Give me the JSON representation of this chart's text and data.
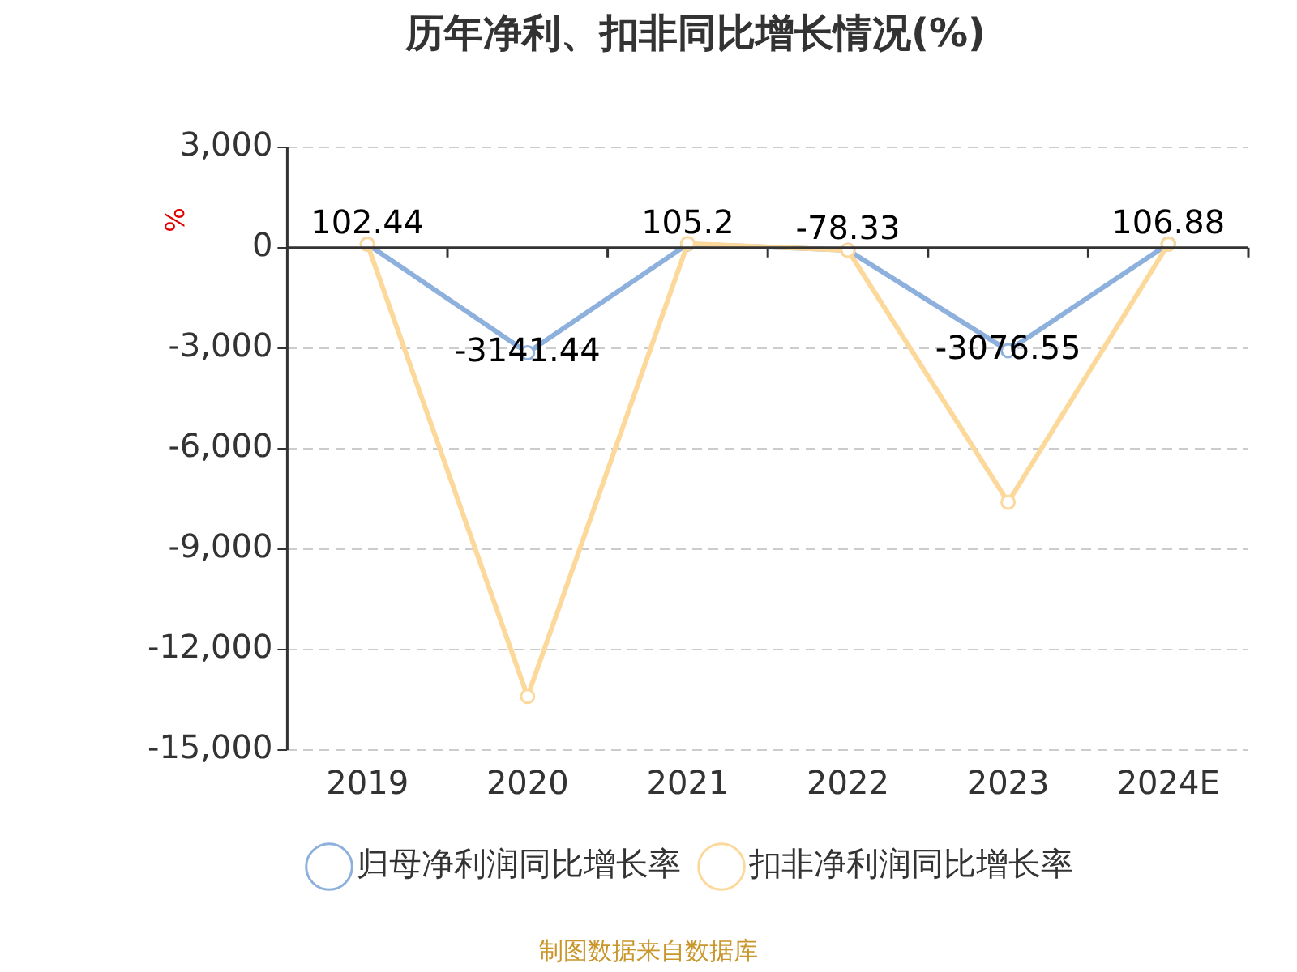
{
  "chart_data": {
    "type": "line",
    "title": "历年净利、扣非同比增长情况(%)",
    "ylabel": "%",
    "categories": [
      "2019",
      "2020",
      "2021",
      "2022",
      "2023",
      "2024E"
    ],
    "series": [
      {
        "name": "归母净利润同比增长率",
        "color": "#8eb0dc",
        "values": [
          102.44,
          -3141.44,
          105.2,
          -78.33,
          -3076.55,
          106.88
        ],
        "value_labels": [
          "102.44",
          "-3141.44",
          "105.2",
          "-78.33",
          "-3076.55",
          "106.88"
        ]
      },
      {
        "name": "扣非净利润同比增长率",
        "color": "#fcd99b",
        "values": [
          100,
          -13400,
          120,
          -80,
          -7600,
          100
        ]
      }
    ],
    "ylim": [
      -15000,
      3000
    ],
    "yticks": [
      {
        "value": 3000,
        "label": "3,000"
      },
      0,
      {
        "value": -3000,
        "label": "-3,000"
      },
      {
        "value": -6000,
        "label": "-6,000"
      },
      {
        "value": -9000,
        "label": "-9,000"
      },
      {
        "value": -12000,
        "label": "-12,000"
      },
      {
        "value": -15000,
        "label": "-15,000"
      }
    ],
    "grid": "y",
    "legend": "bottom",
    "marker": "circle",
    "line_style": "solid",
    "annotations": [
      "制图数据来自数据库"
    ]
  }
}
